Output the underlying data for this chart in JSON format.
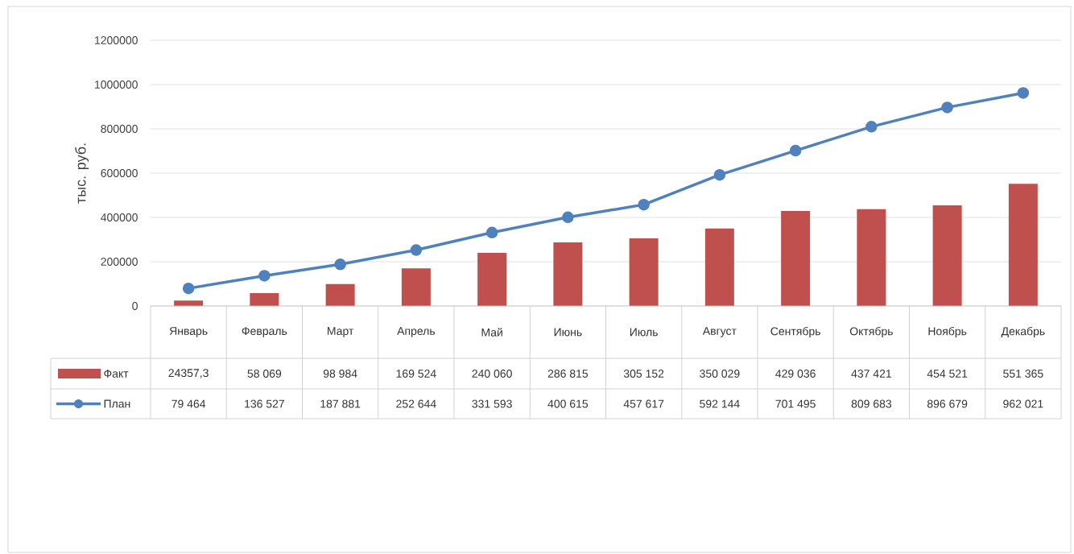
{
  "chart_data": {
    "type": "bar",
    "ylabel": "тыс. руб.",
    "categories": [
      "Январь",
      "Февраль",
      "Март",
      "Апрель",
      "Май",
      "Июнь",
      "Июль",
      "Август",
      "Сентябрь",
      "Октябрь",
      "Ноябрь",
      "Декабрь"
    ],
    "series": [
      {
        "name": "Факт",
        "color": "#c0504d",
        "values": [
          24357.3,
          58069,
          98984,
          169524,
          240060,
          286815,
          305152,
          350029,
          429036,
          437421,
          454521,
          551365
        ],
        "value_labels": [
          "24357,3",
          "58 069",
          "98 984",
          "169 524",
          "240 060",
          "286 815",
          "305 152",
          "350 029",
          "429 036",
          "437 421",
          "454 521",
          "551 365"
        ]
      },
      {
        "name": "План",
        "type": "line",
        "color": "#4f81bd",
        "marker": "circle",
        "values": [
          79464,
          136527,
          187881,
          252644,
          331593,
          400615,
          457617,
          592144,
          701495,
          809683,
          896679,
          962021
        ],
        "value_labels": [
          "79 464",
          "136 527",
          "187 881",
          "252 644",
          "331 593",
          "400 615",
          "457 617",
          "592 144",
          "701 495",
          "809 683",
          "896 679",
          "962 021"
        ]
      }
    ],
    "ylim": [
      0,
      1200000
    ],
    "yticks": [
      0,
      200000,
      400000,
      600000,
      800000,
      1000000,
      1200000
    ],
    "grid": "y",
    "legend": "bottom"
  }
}
